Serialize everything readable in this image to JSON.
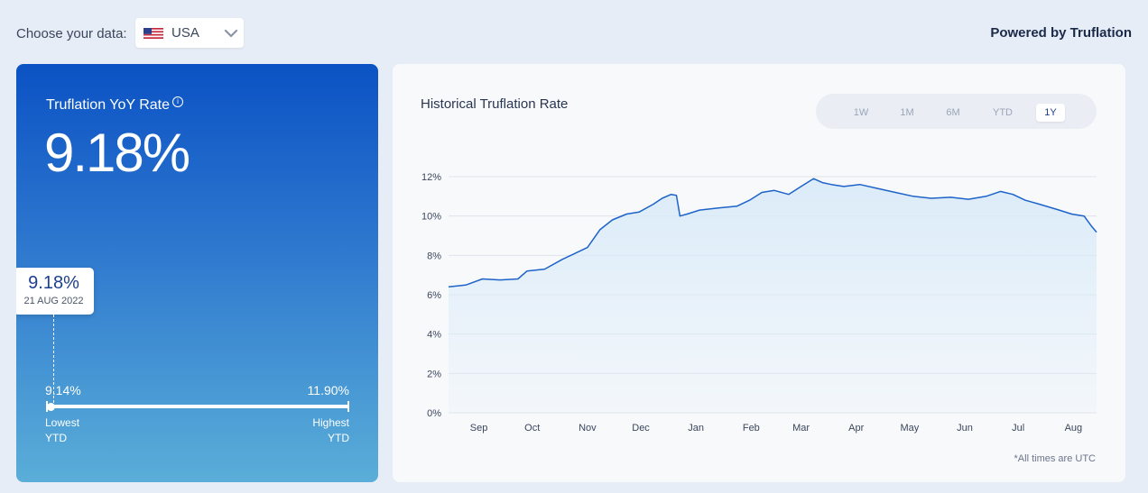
{
  "header": {
    "choose_label": "Choose your data:",
    "country": "USA",
    "powered_by": "Powered by Truflation"
  },
  "summary": {
    "title": "Truflation YoY Rate",
    "info_icon": "info-icon",
    "current_rate": "9.18%",
    "marker_value": "9.18%",
    "marker_date": "21 AUG 2022",
    "lowest_value": "9.14%",
    "highest_value": "11.90%",
    "lowest_label_1": "Lowest",
    "lowest_label_2": "YTD",
    "highest_label_1": "Highest",
    "highest_label_2": "YTD",
    "current_fraction": 0.016
  },
  "chart": {
    "title": "Historical Truflation Rate",
    "tabs": [
      "1W",
      "1M",
      "6M",
      "YTD",
      "1Y"
    ],
    "active_tab": "1Y",
    "note": "*All times are UTC"
  },
  "colors": {
    "line": "#1d63c9",
    "fill": "#d8eaf8",
    "grid": "#dfe3ea",
    "card_gradient_top": "#0b52c4",
    "card_gradient_bottom": "#5aaed8"
  },
  "chart_data": {
    "type": "area",
    "title": "Historical Truflation Rate",
    "xlabel": "",
    "ylabel": "",
    "ylim": [
      0,
      12
    ],
    "y_ticks": [
      "0%",
      "2%",
      "4%",
      "6%",
      "8%",
      "10%",
      "12%"
    ],
    "x_ticks": [
      "Sep",
      "Oct",
      "Nov",
      "Dec",
      "Jan",
      "Feb",
      "Mar",
      "Apr",
      "May",
      "Jun",
      "Jul",
      "Aug"
    ],
    "grid": true,
    "x": [
      "2021-08-22",
      "2021-09-01",
      "2021-09-10",
      "2021-09-20",
      "2021-09-30",
      "2021-10-05",
      "2021-10-15",
      "2021-10-25",
      "2021-11-01",
      "2021-11-08",
      "2021-11-15",
      "2021-11-22",
      "2021-11-30",
      "2021-12-07",
      "2021-12-15",
      "2021-12-20",
      "2021-12-25",
      "2021-12-28",
      "2021-12-30",
      "2022-01-03",
      "2022-01-10",
      "2022-01-20",
      "2022-01-31",
      "2022-02-07",
      "2022-02-14",
      "2022-02-21",
      "2022-03-01",
      "2022-03-08",
      "2022-03-15",
      "2022-03-20",
      "2022-03-25",
      "2022-04-01",
      "2022-04-10",
      "2022-04-20",
      "2022-04-30",
      "2022-05-10",
      "2022-05-20",
      "2022-05-31",
      "2022-06-10",
      "2022-06-20",
      "2022-06-28",
      "2022-07-05",
      "2022-07-12",
      "2022-07-20",
      "2022-07-31",
      "2022-08-07",
      "2022-08-14",
      "2022-08-18",
      "2022-08-21"
    ],
    "series": [
      {
        "values": [
          6.4,
          6.5,
          6.8,
          6.75,
          6.8,
          7.2,
          7.3,
          7.8,
          8.1,
          8.4,
          9.3,
          9.8,
          10.1,
          10.2,
          10.6,
          10.9,
          11.1,
          11.05,
          10.0,
          10.1,
          10.3,
          10.4,
          10.5,
          10.8,
          11.2,
          11.3,
          11.1,
          11.5,
          11.9,
          11.7,
          11.6,
          11.5,
          11.6,
          11.4,
          11.2,
          11.0,
          10.9,
          10.95,
          10.85,
          11.0,
          11.25,
          11.1,
          10.8,
          10.6,
          10.3,
          10.1,
          10.0,
          9.5,
          9.18
        ]
      }
    ]
  }
}
